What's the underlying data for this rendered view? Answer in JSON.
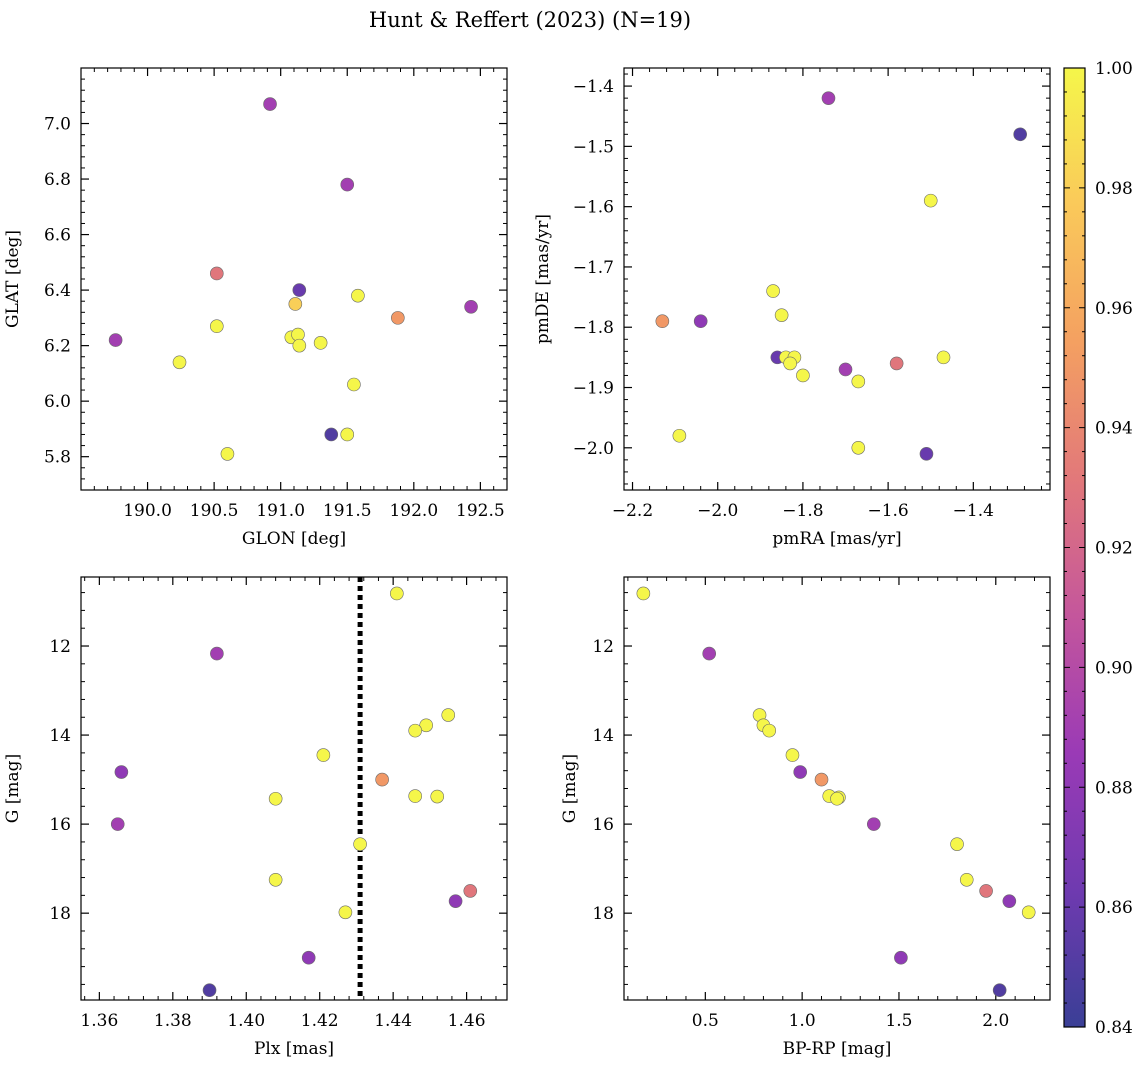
{
  "title": "Hunt & Reffert (2023) (N=19)",
  "colorbar": {
    "min": 0.84,
    "max": 1.0,
    "ticks": [
      0.84,
      0.86,
      0.88,
      0.9,
      0.92,
      0.94,
      0.96,
      0.98,
      1.0
    ],
    "tick_labels": [
      "0.84",
      "0.86",
      "0.88",
      "0.90",
      "0.92",
      "0.94",
      "0.96",
      "0.98",
      "1.00"
    ],
    "colormap": "plasma",
    "colormap_stops": [
      "#3a3f96",
      "#6f3ab0",
      "#9a3ab6",
      "#c4569c",
      "#e2787a",
      "#f4a061",
      "#fac95a",
      "#f5f64a"
    ]
  },
  "chart_data": [
    {
      "type": "scatter",
      "panel": "top-left",
      "xlabel": "GLON [deg]",
      "ylabel": "GLAT [deg]",
      "xlim": [
        189.5,
        192.7
      ],
      "ylim": [
        5.68,
        7.2
      ],
      "xticks": [
        190.0,
        190.5,
        191.0,
        191.5,
        192.0,
        192.5
      ],
      "xtick_labels": [
        "190.0",
        "190.5",
        "191.0",
        "191.5",
        "192.0",
        "192.5"
      ],
      "yticks": [
        5.8,
        6.0,
        6.2,
        6.4,
        6.6,
        6.8,
        7.0
      ],
      "ytick_labels": [
        "5.8",
        "6.0",
        "6.2",
        "6.4",
        "6.6",
        "6.8",
        "7.0"
      ],
      "x": [
        190.92,
        191.5,
        190.52,
        191.14,
        191.11,
        191.58,
        191.88,
        192.43,
        189.76,
        190.52,
        191.08,
        191.13,
        191.3,
        191.14,
        190.24,
        191.55,
        191.38,
        191.5,
        190.6
      ],
      "y": [
        7.07,
        6.78,
        6.46,
        6.4,
        6.35,
        6.38,
        6.3,
        6.34,
        6.22,
        6.27,
        6.23,
        6.24,
        6.21,
        6.2,
        6.14,
        6.06,
        5.88,
        5.88,
        5.81
      ],
      "c": [
        0.89,
        0.89,
        0.93,
        0.86,
        0.98,
        1.0,
        0.95,
        0.89,
        0.89,
        1.0,
        1.0,
        1.0,
        1.0,
        1.0,
        1.0,
        1.0,
        0.85,
        1.0,
        1.0
      ]
    },
    {
      "type": "scatter",
      "panel": "top-right",
      "xlabel": "pmRA [mas/yr]",
      "ylabel": "pmDE [mas/yr]",
      "xlim": [
        -2.22,
        -1.22
      ],
      "ylim": [
        -2.07,
        -1.37
      ],
      "xticks": [
        -2.2,
        -2.0,
        -1.8,
        -1.6,
        -1.4
      ],
      "xtick_labels": [
        "−2.2",
        "−2.0",
        "−1.8",
        "−1.6",
        "−1.4"
      ],
      "yticks": [
        -2.0,
        -1.9,
        -1.8,
        -1.7,
        -1.6,
        -1.5,
        -1.4
      ],
      "ytick_labels": [
        "−2.0",
        "−1.9",
        "−1.8",
        "−1.7",
        "−1.6",
        "−1.5",
        "−1.4"
      ],
      "x": [
        -1.74,
        -1.29,
        -1.5,
        -1.87,
        -1.85,
        -2.13,
        -2.04,
        -1.86,
        -1.84,
        -1.82,
        -1.83,
        -1.8,
        -1.7,
        -1.67,
        -1.58,
        -1.47,
        -2.09,
        -1.67,
        -1.51
      ],
      "y": [
        -1.42,
        -1.48,
        -1.59,
        -1.74,
        -1.78,
        -1.79,
        -1.79,
        -1.85,
        -1.85,
        -1.85,
        -1.86,
        -1.88,
        -1.87,
        -1.89,
        -1.86,
        -1.85,
        -1.98,
        -2.0,
        -2.01
      ],
      "c": [
        0.89,
        0.85,
        1.0,
        1.0,
        1.0,
        0.95,
        0.88,
        0.86,
        1.0,
        1.0,
        1.0,
        1.0,
        0.89,
        1.0,
        0.93,
        1.0,
        1.0,
        1.0,
        0.86
      ]
    },
    {
      "type": "scatter",
      "panel": "bottom-left",
      "xlabel": "Plx [mas]",
      "ylabel": "G [mag]",
      "xlim": [
        1.355,
        1.471
      ],
      "ylim": [
        19.95,
        10.45
      ],
      "y_inverted": true,
      "reference_line": {
        "axis": "x",
        "value": 1.431,
        "style": "dotted"
      },
      "xticks": [
        1.36,
        1.38,
        1.4,
        1.42,
        1.44,
        1.46
      ],
      "xtick_labels": [
        "1.36",
        "1.38",
        "1.40",
        "1.42",
        "1.44",
        "1.46"
      ],
      "yticks": [
        12,
        14,
        16,
        18
      ],
      "ytick_labels": [
        "12",
        "14",
        "16",
        "18"
      ],
      "x": [
        1.441,
        1.392,
        1.455,
        1.449,
        1.446,
        1.366,
        1.421,
        1.437,
        1.408,
        1.446,
        1.452,
        1.365,
        1.431,
        1.408,
        1.461,
        1.457,
        1.427,
        1.417,
        1.39
      ],
      "y": [
        10.82,
        12.17,
        13.55,
        13.78,
        13.9,
        14.83,
        14.45,
        15.0,
        15.43,
        15.37,
        15.38,
        16.0,
        16.45,
        17.25,
        17.5,
        17.73,
        17.98,
        19.0,
        19.73
      ],
      "c": [
        1.0,
        0.89,
        1.0,
        1.0,
        1.0,
        0.88,
        1.0,
        0.95,
        1.0,
        1.0,
        1.0,
        0.89,
        1.0,
        1.0,
        0.93,
        0.88,
        1.0,
        0.88,
        0.85
      ]
    },
    {
      "type": "scatter",
      "panel": "bottom-right",
      "xlabel": "BP-RP [mag]",
      "ylabel": "G [mag]",
      "xlim": [
        0.08,
        2.28
      ],
      "ylim": [
        19.95,
        10.45
      ],
      "y_inverted": true,
      "xticks": [
        0.5,
        1.0,
        1.5,
        2.0
      ],
      "xtick_labels": [
        "0.5",
        "1.0",
        "1.5",
        "2.0"
      ],
      "yticks": [
        12,
        14,
        16,
        18
      ],
      "ytick_labels": [
        "12",
        "14",
        "16",
        "18"
      ],
      "x": [
        0.18,
        0.52,
        0.78,
        0.8,
        0.83,
        0.99,
        0.95,
        1.1,
        1.14,
        1.19,
        1.18,
        1.37,
        1.8,
        1.85,
        1.95,
        2.07,
        2.17,
        1.51,
        2.02
      ],
      "y": [
        10.82,
        12.17,
        13.55,
        13.78,
        13.9,
        14.83,
        14.45,
        15.0,
        15.37,
        15.4,
        15.43,
        16.0,
        16.45,
        17.25,
        17.5,
        17.73,
        17.98,
        19.0,
        19.73
      ],
      "c": [
        1.0,
        0.89,
        1.0,
        1.0,
        1.0,
        0.88,
        1.0,
        0.95,
        1.0,
        1.0,
        1.0,
        0.89,
        1.0,
        1.0,
        0.93,
        0.88,
        1.0,
        0.88,
        0.85
      ]
    }
  ]
}
